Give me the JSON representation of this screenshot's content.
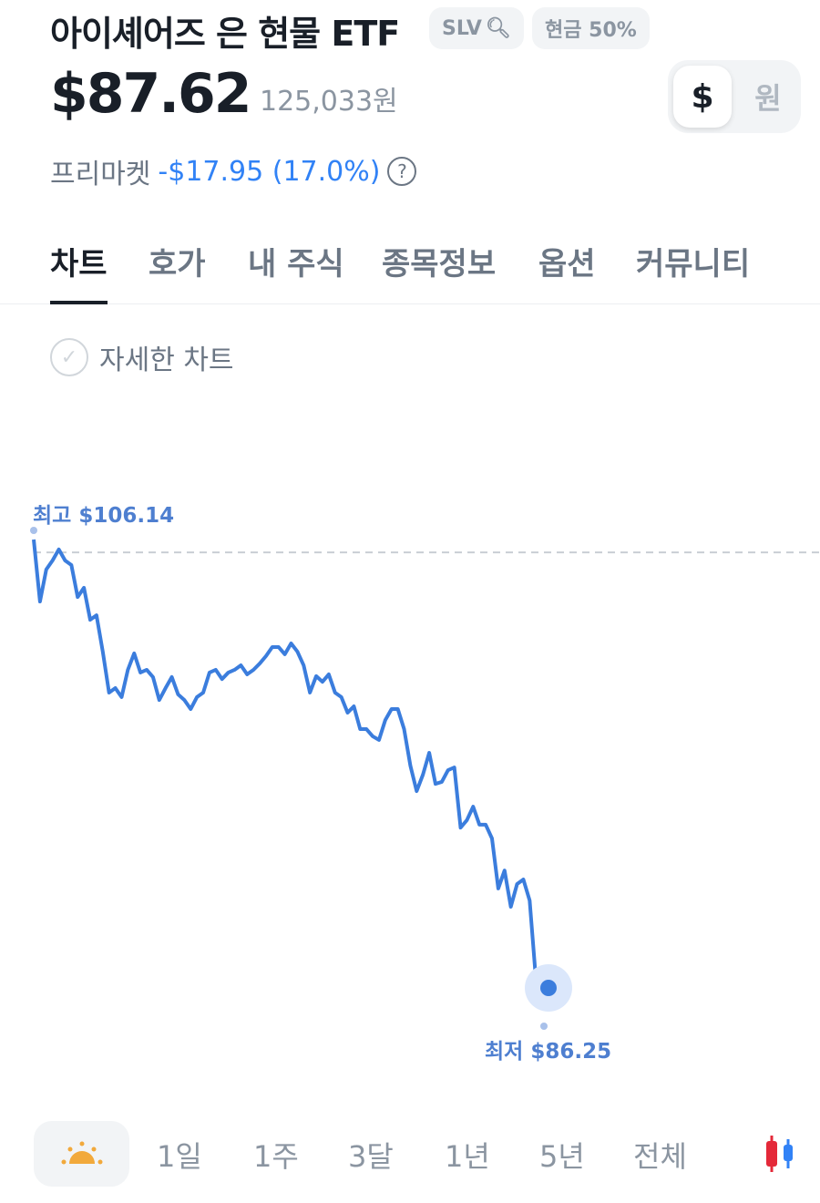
{
  "header": {
    "title": "아이셰어즈 은 현물 ETF",
    "ticker": "SLV",
    "cash_badge": "현금 50%",
    "price": "$87.62",
    "price_krw": "125,033원",
    "currency_toggle": {
      "usd": "$",
      "krw": "원",
      "selected": "usd"
    },
    "premarket_label": "프리마켓",
    "premarket_change": "-$17.95 (17.0%)",
    "help": "?"
  },
  "tabs": [
    {
      "label": "차트",
      "active": true
    },
    {
      "label": "호가"
    },
    {
      "label": "내 주식"
    },
    {
      "label": "종목정보"
    },
    {
      "label": "옵션"
    },
    {
      "label": "커뮤니티"
    }
  ],
  "detail_chart_label": "자세한 차트",
  "chart_data": {
    "type": "line",
    "color": "#3b7ddd",
    "high_label": "최고 $106.14",
    "low_label": "최저 $86.25",
    "high": 106.14,
    "low": 86.25,
    "reference_line": 105.57,
    "values": [
      106.14,
      103.39,
      104.81,
      105.21,
      105.7,
      105.21,
      105.01,
      103.59,
      104.0,
      102.58,
      102.78,
      101.17,
      99.35,
      99.55,
      99.15,
      100.36,
      101.09,
      100.24,
      100.36,
      100.04,
      99.02,
      99.55,
      100.04,
      99.27,
      99.02,
      98.62,
      99.15,
      99.35,
      100.24,
      100.36,
      99.95,
      100.24,
      100.36,
      100.56,
      100.16,
      100.36,
      100.64,
      100.97,
      101.37,
      101.37,
      101.05,
      101.53,
      101.17,
      100.56,
      99.35,
      100.08,
      99.83,
      100.16,
      99.35,
      99.15,
      98.46,
      98.74,
      97.73,
      97.73,
      97.41,
      97.25,
      98.13,
      98.62,
      98.62,
      97.73,
      96.11,
      94.98,
      95.71,
      96.68,
      95.3,
      95.39,
      95.91,
      96.03,
      93.36,
      93.69,
      94.29,
      93.49,
      93.49,
      92.88,
      90.66,
      91.46,
      89.85,
      90.86,
      91.06,
      90.13,
      86.61,
      86.81,
      86.25
    ]
  },
  "periods": [
    "1일",
    "1주",
    "3달",
    "1년",
    "5년",
    "전체"
  ],
  "icons": {
    "sun": "sunrise-icon",
    "candle": "candlestick-icon",
    "search": "search-icon"
  },
  "colors": {
    "accent": "#3182f6",
    "sun": "#f2a93b",
    "up": "#e42939",
    "down": "#3182f6"
  }
}
